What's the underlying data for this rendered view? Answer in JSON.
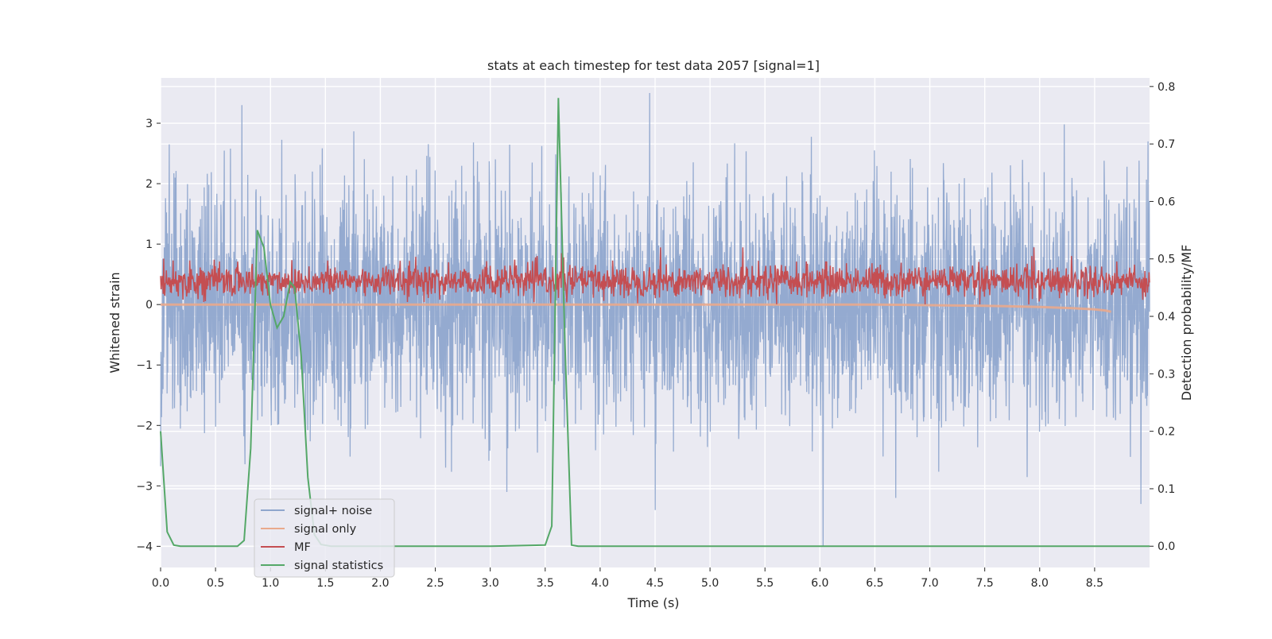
{
  "chart_data": {
    "type": "line",
    "title": "stats at each timestep for test data 2057 [signal=1]",
    "xlabel": "Time (s)",
    "ylabel_left": "Whitened strain",
    "ylabel_right": "Detection probability/MF",
    "xlim": [
      0.0,
      9.0
    ],
    "ylim_left": [
      -4.35,
      3.75
    ],
    "ylim_right": [
      -0.037,
      0.815
    ],
    "x_ticks": [
      "0.0",
      "0.5",
      "1.0",
      "1.5",
      "2.0",
      "2.5",
      "3.0",
      "3.5",
      "4.0",
      "4.5",
      "5.0",
      "5.5",
      "6.0",
      "6.5",
      "7.0",
      "7.5",
      "8.0",
      "8.5"
    ],
    "y_left_ticks": [
      "3",
      "2",
      "1",
      "0",
      "−1",
      "−2",
      "−3",
      "−4"
    ],
    "y_right_ticks": [
      "0.8",
      "0.7",
      "0.6",
      "0.5",
      "0.4",
      "0.3",
      "0.2",
      "0.1",
      "0.0"
    ],
    "grid": true,
    "legend_position": "lower-left",
    "background_color": "#eaeaf2",
    "series": [
      {
        "name": "signal+ noise",
        "axis": "left",
        "color": "#8fa6cd",
        "approx_range": [
          -3.3,
          3.5
        ],
        "notable_spikes": [
          {
            "x": 0.74,
            "y": 3.3
          },
          {
            "x": 4.45,
            "y": 3.5
          },
          {
            "x": 6.03,
            "y": -4.0
          },
          {
            "x": 4.5,
            "y": -3.4
          },
          {
            "x": 3.15,
            "y": -3.1
          },
          {
            "x": 8.92,
            "y": -3.3
          }
        ]
      },
      {
        "name": "signal only",
        "axis": "left",
        "color": "#e9a98c",
        "x": [
          0.0,
          5.5,
          6.0,
          6.5,
          7.0,
          7.5,
          8.0,
          8.3,
          8.5,
          8.6,
          8.65
        ],
        "y": [
          0.0,
          0.0,
          0.0,
          0.0,
          -0.01,
          -0.02,
          -0.04,
          -0.06,
          -0.08,
          -0.1,
          -0.12
        ]
      },
      {
        "name": "MF",
        "axis": "right",
        "color": "#c44e52",
        "approx_range": [
          0.42,
          0.53
        ],
        "notable_spikes": [
          {
            "x": 4.55,
            "y": 0.52
          },
          {
            "x": 5.3,
            "y": 0.52
          },
          {
            "x": 7.95,
            "y": 0.52
          },
          {
            "x": 3.65,
            "y": 0.51
          }
        ]
      },
      {
        "name": "signal statistics",
        "axis": "right",
        "color": "#55a868",
        "x": [
          0.0,
          0.06,
          0.12,
          0.18,
          0.3,
          0.5,
          0.7,
          0.76,
          0.82,
          0.88,
          0.94,
          1.0,
          1.06,
          1.12,
          1.18,
          1.22,
          1.28,
          1.34,
          1.4,
          1.46,
          1.55,
          2.0,
          2.5,
          3.0,
          3.5,
          3.56,
          3.62,
          3.68,
          3.74,
          3.8,
          4.0,
          5.0,
          6.0,
          7.0,
          8.0,
          9.0
        ],
        "y": [
          0.2,
          0.025,
          0.002,
          0.0,
          0.0,
          0.0,
          0.0,
          0.01,
          0.17,
          0.55,
          0.52,
          0.42,
          0.38,
          0.4,
          0.46,
          0.45,
          0.33,
          0.12,
          0.02,
          0.003,
          0.0,
          0.0,
          0.0,
          0.0,
          0.002,
          0.035,
          0.78,
          0.35,
          0.002,
          0.0,
          0.0,
          0.0,
          0.0,
          0.0,
          0.0,
          0.0
        ]
      }
    ]
  }
}
